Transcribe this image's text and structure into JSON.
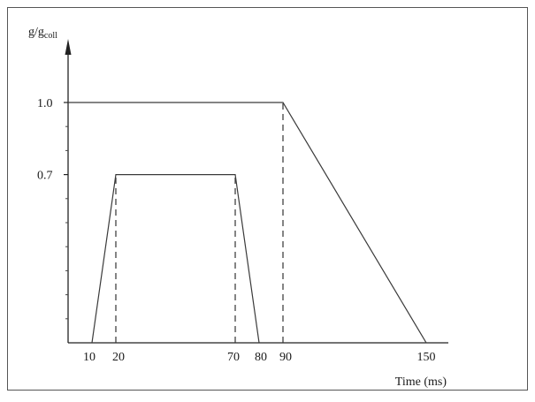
{
  "chart_data": {
    "type": "line",
    "ylabel": "g/g",
    "ylabel_sub": "coll",
    "xlabel": "Time (ms)",
    "x_ticks": [
      "10",
      "20",
      "70",
      "80",
      "90",
      "150"
    ],
    "y_ticks": [
      "1.0",
      "0.7"
    ],
    "xlim": [
      0,
      155
    ],
    "ylim": [
      0,
      1.3
    ],
    "grid": false,
    "series": [
      {
        "x": [
          10,
          20,
          70,
          80
        ],
        "y": [
          0,
          0.7,
          0.7,
          0
        ]
      },
      {
        "x": [
          0,
          90,
          150
        ],
        "y": [
          1.0,
          1.0,
          0
        ]
      }
    ],
    "reference_lines": [
      {
        "orientation": "vertical",
        "x": 20,
        "y_top": 0.7
      },
      {
        "orientation": "vertical",
        "x": 70,
        "y_top": 0.7
      },
      {
        "orientation": "vertical",
        "x": 90,
        "y_top": 1.0
      }
    ],
    "colors": {
      "line": "#3a3a3a",
      "border": "#555555"
    }
  }
}
